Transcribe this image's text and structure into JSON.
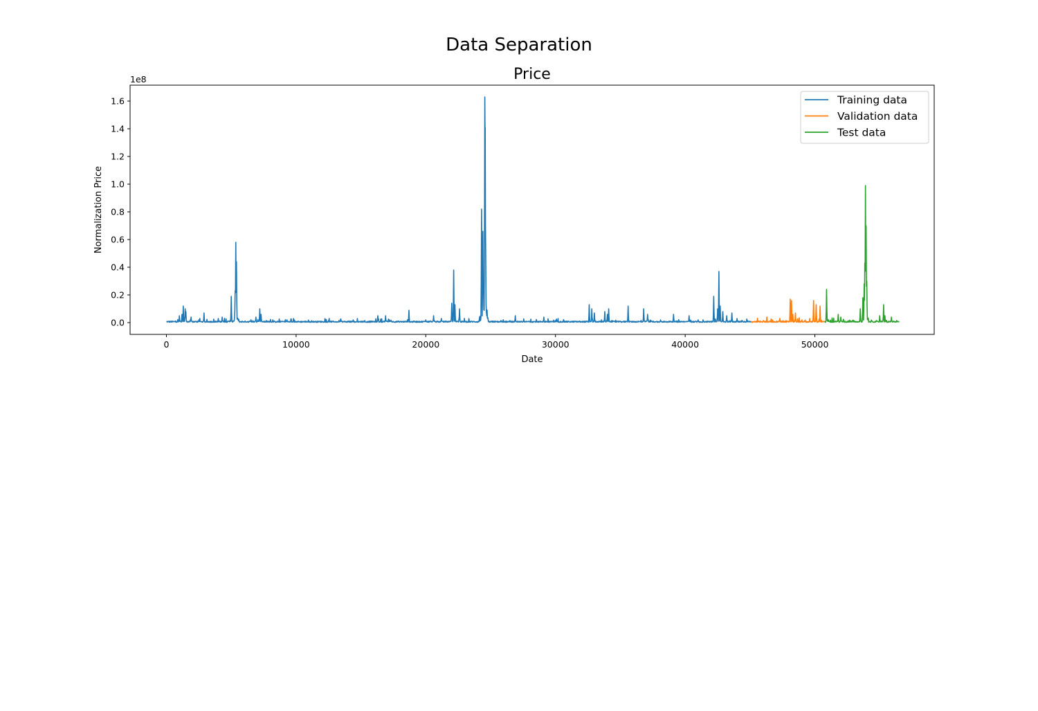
{
  "figure": {
    "suptitle": "Data Separation"
  },
  "chart_data": {
    "type": "line",
    "title": "Price",
    "xlabel": "Date",
    "ylabel": "Normalization Price",
    "y_offset_label": "1e8",
    "xlim": [
      -2800,
      59200
    ],
    "ylim": [
      -8500000,
      171500000
    ],
    "x_ticks": [
      0,
      10000,
      20000,
      30000,
      40000,
      50000
    ],
    "x_tick_labels": [
      "0",
      "10000",
      "20000",
      "30000",
      "40000",
      "50000"
    ],
    "y_ticks": [
      0,
      20000000,
      40000000,
      60000000,
      80000000,
      100000000,
      120000000,
      140000000,
      160000000
    ],
    "y_tick_labels": [
      "0.0",
      "0.2",
      "0.4",
      "0.6",
      "0.8",
      "1.0",
      "1.2",
      "1.4",
      "1.6"
    ],
    "grid": false,
    "legend_position": "top-right",
    "series": [
      {
        "name": "Training data",
        "color": "#1f77b4",
        "x_range": [
          0,
          45100
        ],
        "peaks": [
          [
            1000,
            5000000
          ],
          [
            1200,
            6000000
          ],
          [
            1300,
            12000000
          ],
          [
            1450,
            10000000
          ],
          [
            1500,
            8000000
          ],
          [
            1900,
            4000000
          ],
          [
            2500,
            2000000
          ],
          [
            2900,
            7000000
          ],
          [
            4000,
            3000000
          ],
          [
            4300,
            4000000
          ],
          [
            5000,
            19000000
          ],
          [
            5300,
            23000000
          ],
          [
            5350,
            58000000
          ],
          [
            5400,
            44000000
          ],
          [
            6900,
            4000000
          ],
          [
            7200,
            10000000
          ],
          [
            7300,
            6000000
          ],
          [
            8200,
            2000000
          ],
          [
            9300,
            2000000
          ],
          [
            9800,
            3000000
          ],
          [
            12500,
            1500000
          ],
          [
            13300,
            1500000
          ],
          [
            14400,
            2000000
          ],
          [
            15300,
            1500000
          ],
          [
            16300,
            5000000
          ],
          [
            16900,
            5000000
          ],
          [
            17200,
            2000000
          ],
          [
            18700,
            9000000
          ],
          [
            20000,
            2000000
          ],
          [
            20600,
            5000000
          ],
          [
            21200,
            3000000
          ],
          [
            22000,
            14000000
          ],
          [
            22150,
            38000000
          ],
          [
            22250,
            13000000
          ],
          [
            22600,
            10000000
          ],
          [
            24300,
            82000000
          ],
          [
            24400,
            66000000
          ],
          [
            24450,
            25000000
          ],
          [
            24550,
            163000000
          ],
          [
            24580,
            141000000
          ],
          [
            24620,
            50000000
          ],
          [
            25800,
            1500000
          ],
          [
            26900,
            5000000
          ],
          [
            27500,
            1000000
          ],
          [
            29100,
            4000000
          ],
          [
            30000,
            1500000
          ],
          [
            32600,
            13000000
          ],
          [
            32800,
            10000000
          ],
          [
            33000,
            7000000
          ],
          [
            33800,
            8000000
          ],
          [
            34000,
            6000000
          ],
          [
            34100,
            10000000
          ],
          [
            35600,
            12000000
          ],
          [
            36800,
            10000000
          ],
          [
            37100,
            6000000
          ],
          [
            38100,
            2000000
          ],
          [
            39100,
            6000000
          ],
          [
            40300,
            5000000
          ],
          [
            41000,
            2000000
          ],
          [
            42200,
            19000000
          ],
          [
            42500,
            10000000
          ],
          [
            42600,
            37000000
          ],
          [
            42700,
            12000000
          ],
          [
            42900,
            8000000
          ],
          [
            43200,
            5000000
          ],
          [
            43600,
            7000000
          ],
          [
            44000,
            3000000
          ],
          [
            44800,
            1500000
          ]
        ]
      },
      {
        "name": "Validation data",
        "color": "#ff7f0e",
        "x_range": [
          45100,
          50800
        ],
        "peaks": [
          [
            46300,
            4000000
          ],
          [
            47300,
            3000000
          ],
          [
            48100,
            17000000
          ],
          [
            48200,
            16000000
          ],
          [
            48300,
            6000000
          ],
          [
            48500,
            7000000
          ],
          [
            49000,
            2000000
          ],
          [
            49600,
            3000000
          ],
          [
            49900,
            16000000
          ],
          [
            50100,
            13000000
          ],
          [
            50400,
            12000000
          ]
        ]
      },
      {
        "name": "Test data",
        "color": "#2ca02c",
        "x_range": [
          50800,
          56500
        ],
        "peaks": [
          [
            50900,
            24000000
          ],
          [
            51800,
            6000000
          ],
          [
            52000,
            4000000
          ],
          [
            53000,
            1500000
          ],
          [
            53500,
            10000000
          ],
          [
            53700,
            18000000
          ],
          [
            53800,
            28000000
          ],
          [
            53850,
            43000000
          ],
          [
            53900,
            99000000
          ],
          [
            53950,
            70000000
          ],
          [
            54000,
            30000000
          ],
          [
            55000,
            5000000
          ],
          [
            55300,
            13000000
          ],
          [
            55400,
            5000000
          ],
          [
            55900,
            4000000
          ],
          [
            56300,
            1500000
          ]
        ]
      }
    ]
  }
}
